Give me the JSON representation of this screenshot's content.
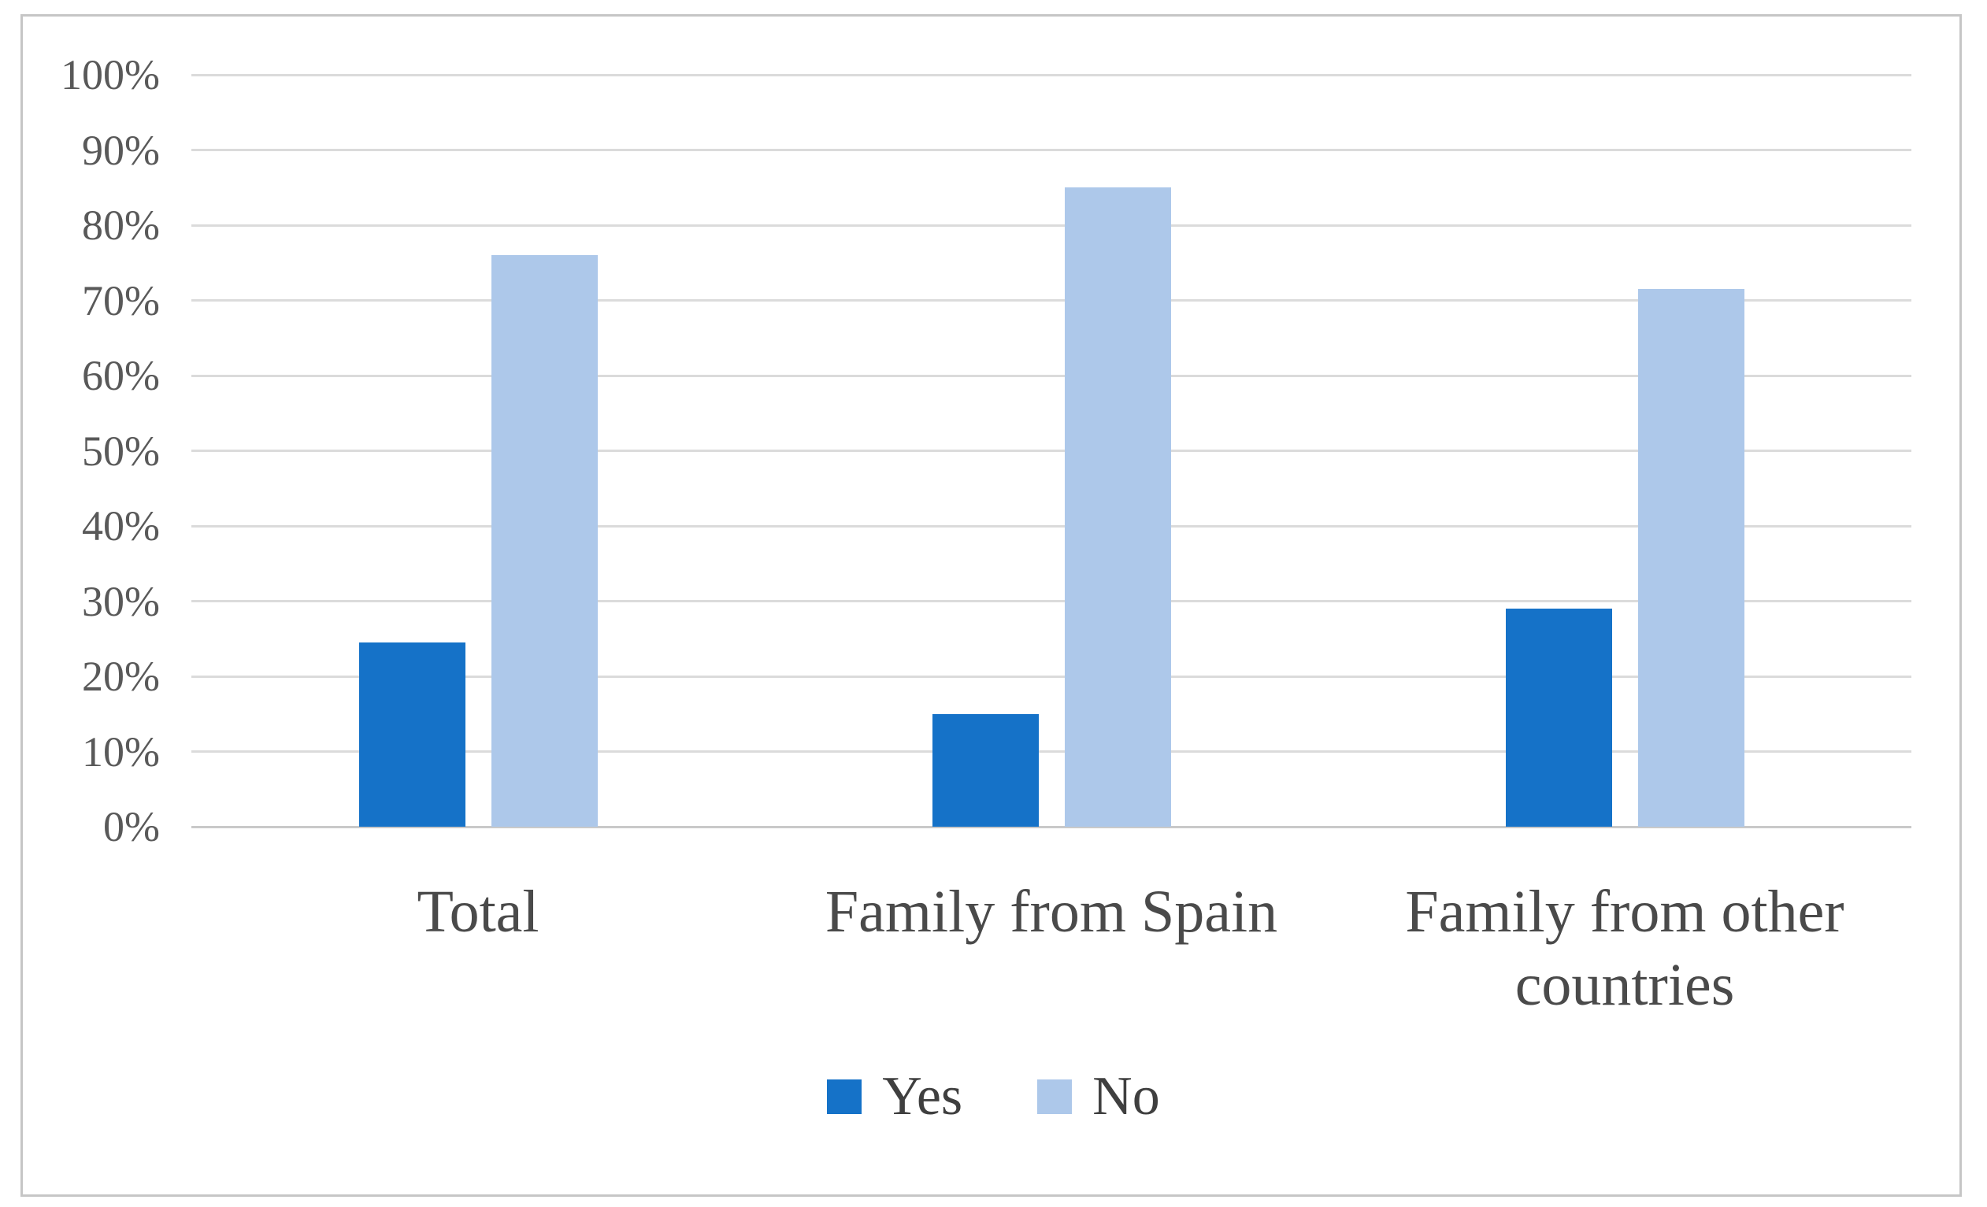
{
  "chart_data": {
    "type": "bar",
    "title": "",
    "xlabel": "",
    "ylabel": "",
    "categories": [
      "Total",
      "Family from Spain",
      "Family from other countries"
    ],
    "series": [
      {
        "name": "Yes",
        "color": "#1572C8",
        "values": [
          24.5,
          15,
          29
        ]
      },
      {
        "name": "No",
        "color": "#ADC8EA",
        "values": [
          76,
          85,
          71.5
        ]
      }
    ],
    "ylim": [
      0,
      100
    ],
    "y_ticks": [
      "0%",
      "10%",
      "20%",
      "30%",
      "40%",
      "50%",
      "60%",
      "70%",
      "80%",
      "90%",
      "100%"
    ],
    "grid": true,
    "legend_position": "bottom"
  },
  "styles": {
    "gridline_color": "#dbdbdb",
    "axis_line_color": "#c9c9c9",
    "frame_border_color": "#c6c6c6",
    "tick_label_color": "#595959",
    "category_label_color": "#4a4a4a",
    "legend_label_color": "#3f3f3f",
    "background_color": "#ffffff"
  }
}
